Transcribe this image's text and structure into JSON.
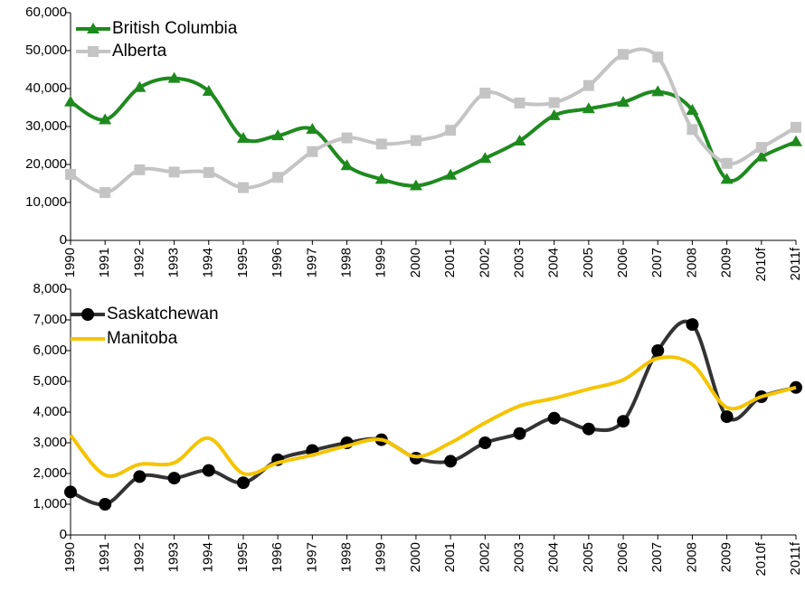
{
  "chart_data": [
    {
      "type": "line",
      "categories": [
        "1990",
        "1991",
        "1992",
        "1993",
        "1994",
        "1995",
        "1996",
        "1997",
        "1998",
        "1999",
        "2000",
        "2001",
        "2002",
        "2003",
        "2004",
        "2005",
        "2006",
        "2007",
        "2008",
        "2009",
        "2010f",
        "2011f"
      ],
      "series": [
        {
          "name": "British Columbia",
          "color": "#1e8a1e",
          "marker": "triangle",
          "values": [
            36500,
            31800,
            40300,
            42700,
            39300,
            26900,
            27600,
            29300,
            19700,
            16100,
            14400,
            17200,
            21600,
            26200,
            32900,
            34700,
            36400,
            39200,
            34300,
            16100,
            22000,
            26000
          ]
        },
        {
          "name": "Alberta",
          "color": "#c4c4c4",
          "marker": "square",
          "values": [
            17400,
            12600,
            18600,
            18000,
            17900,
            13900,
            16600,
            23400,
            27000,
            25400,
            26300,
            29000,
            38800,
            36200,
            36300,
            40800,
            49000,
            48300,
            29200,
            20300,
            24500,
            29800
          ]
        }
      ],
      "ylim": [
        0,
        60000
      ],
      "yticks": [
        0,
        {
          "value": 10000,
          "label": "10,000"
        },
        {
          "value": 20000,
          "label": "20,000"
        },
        {
          "value": 30000,
          "label": "30,000"
        },
        {
          "value": 40000,
          "label": "40,000"
        },
        {
          "value": 50000,
          "label": "50,000"
        },
        {
          "value": 60000,
          "label": "60,000"
        }
      ]
    },
    {
      "type": "line",
      "categories": [
        "1990",
        "1991",
        "1992",
        "1993",
        "1994",
        "1995",
        "1996",
        "1997",
        "1998",
        "1999",
        "2000",
        "2001",
        "2002",
        "2003",
        "2004",
        "2005",
        "2006",
        "2007",
        "2008",
        "2009",
        "2010f",
        "2011f"
      ],
      "series": [
        {
          "name": "Saskatchewan",
          "color": "#333333",
          "marker": "circle",
          "values": [
            1400,
            1000,
            1900,
            1850,
            2100,
            1700,
            2450,
            2750,
            3000,
            3100,
            2500,
            2400,
            3000,
            3300,
            3800,
            3450,
            3700,
            6000,
            6850,
            3850,
            4500,
            4800
          ]
        },
        {
          "name": "Manitoba",
          "color": "#f5c400",
          "marker": "none",
          "values": [
            3250,
            1950,
            2300,
            2350,
            3150,
            2000,
            2350,
            2600,
            2900,
            3100,
            2550,
            3000,
            3650,
            4200,
            4450,
            4750,
            5050,
            5750,
            5550,
            4150,
            4500,
            4800
          ]
        }
      ],
      "ylim": [
        0,
        8000
      ],
      "yticks": [
        0,
        {
          "value": 1000,
          "label": "1,000"
        },
        {
          "value": 2000,
          "label": "2,000"
        },
        {
          "value": 3000,
          "label": "3,000"
        },
        {
          "value": 4000,
          "label": "4,000"
        },
        {
          "value": 5000,
          "label": "5,000"
        },
        {
          "value": 6000,
          "label": "6,000"
        },
        {
          "value": 7000,
          "label": "7,000"
        },
        {
          "value": 8000,
          "label": "8,000"
        }
      ]
    }
  ]
}
